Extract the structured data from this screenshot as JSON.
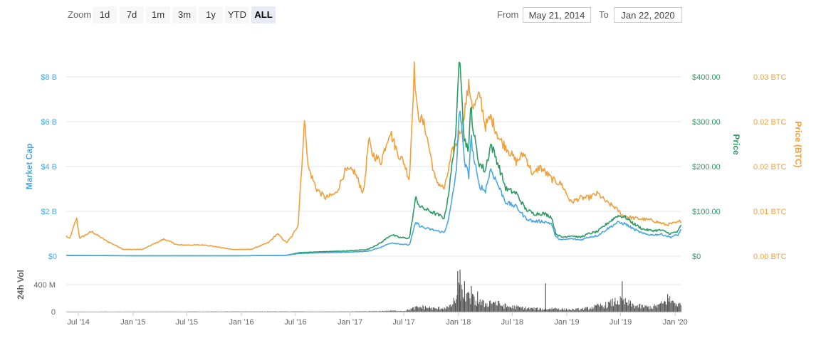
{
  "toolbar": {
    "zoom_label": "Zoom",
    "buttons": [
      "1d",
      "7d",
      "1m",
      "3m",
      "1y",
      "YTD",
      "ALL"
    ],
    "active": "ALL",
    "from_label": "From",
    "from_value": "May 21, 2014",
    "to_label": "To",
    "to_value": "Jan 22, 2020"
  },
  "colors": {
    "market_cap": "#4aa8e0",
    "price_usd": "#2e9a63",
    "price_btc": "#f0a03c",
    "volume": "#555555",
    "grid": "#e6e6e6",
    "axis_text": "#666666"
  },
  "chart_data": {
    "type": "line",
    "x_range": [
      "2014-05-21",
      "2020-01-22"
    ],
    "x_ticks": [
      "Jul '14",
      "Jan '15",
      "Jul '15",
      "Jan '16",
      "Jul '16",
      "Jan '17",
      "Jul '17",
      "Jan '18",
      "Jul '18",
      "Jan '19",
      "Jul '19",
      "Jan '20"
    ],
    "x_tick_dates": [
      "2014-07-01",
      "2015-01-01",
      "2015-07-01",
      "2016-01-01",
      "2016-07-01",
      "2017-01-01",
      "2017-07-01",
      "2018-01-01",
      "2018-07-01",
      "2019-01-01",
      "2019-07-01",
      "2020-01-01"
    ],
    "axes": {
      "market_cap": {
        "label": "Market Cap",
        "ticks": [
          "$0",
          "$2 B",
          "$4 B",
          "$6 B",
          "$8 B"
        ],
        "range": [
          0,
          8
        ]
      },
      "price_usd": {
        "label": "Price",
        "ticks": [
          "$0",
          "$100.00",
          "$200.00",
          "$300.00",
          "$400.00"
        ],
        "range": [
          0,
          400
        ]
      },
      "price_btc": {
        "label": "Price (BTC)",
        "ticks": [
          "0.00 BTC",
          "0.01 BTC",
          "0.02 BTC",
          "0.02 BTC",
          "0.03 BTC"
        ],
        "range": [
          0,
          0.04
        ]
      },
      "volume": {
        "label": "24h Vol",
        "ticks": [
          "0",
          "400 M"
        ],
        "range": [
          0,
          400
        ]
      }
    },
    "series": [
      {
        "name": "Price (BTC)",
        "color": "#f0a03c",
        "points": [
          [
            "2014-05-21",
            0.0045
          ],
          [
            "2014-06-01",
            0.0038
          ],
          [
            "2014-06-15",
            0.0065
          ],
          [
            "2014-06-25",
            0.0085
          ],
          [
            "2014-07-05",
            0.004
          ],
          [
            "2014-08-15",
            0.0055
          ],
          [
            "2014-10-01",
            0.0035
          ],
          [
            "2014-12-01",
            0.0015
          ],
          [
            "2015-02-01",
            0.0015
          ],
          [
            "2015-04-15",
            0.0038
          ],
          [
            "2015-06-01",
            0.0025
          ],
          [
            "2015-09-01",
            0.0025
          ],
          [
            "2015-12-01",
            0.0015
          ],
          [
            "2016-02-01",
            0.0015
          ],
          [
            "2016-04-01",
            0.003
          ],
          [
            "2016-05-01",
            0.005
          ],
          [
            "2016-06-01",
            0.003
          ],
          [
            "2016-06-20",
            0.0045
          ],
          [
            "2016-07-10",
            0.007
          ],
          [
            "2016-07-18",
            0.016
          ],
          [
            "2016-07-25",
            0.023
          ],
          [
            "2016-08-02",
            0.031
          ],
          [
            "2016-08-12",
            0.02
          ],
          [
            "2016-09-10",
            0.015
          ],
          [
            "2016-10-10",
            0.013
          ],
          [
            "2016-11-15",
            0.014
          ],
          [
            "2016-12-15",
            0.019
          ],
          [
            "2017-01-15",
            0.019
          ],
          [
            "2017-02-15",
            0.014
          ],
          [
            "2017-03-05",
            0.026
          ],
          [
            "2017-03-15",
            0.023
          ],
          [
            "2017-04-15",
            0.021
          ],
          [
            "2017-05-15",
            0.028
          ],
          [
            "2017-06-10",
            0.023
          ],
          [
            "2017-07-01",
            0.021
          ],
          [
            "2017-07-20",
            0.017
          ],
          [
            "2017-08-05",
            0.042
          ],
          [
            "2017-08-15",
            0.032
          ],
          [
            "2017-09-10",
            0.029
          ],
          [
            "2017-10-15",
            0.017
          ],
          [
            "2017-11-15",
            0.015
          ],
          [
            "2017-12-10",
            0.023
          ],
          [
            "2017-12-25",
            0.025
          ],
          [
            "2018-01-15",
            0.03
          ],
          [
            "2018-02-05",
            0.038
          ],
          [
            "2018-02-20",
            0.033
          ],
          [
            "2018-03-15",
            0.036
          ],
          [
            "2018-04-01",
            0.029
          ],
          [
            "2018-04-20",
            0.031
          ],
          [
            "2018-05-20",
            0.026
          ],
          [
            "2018-06-15",
            0.024
          ],
          [
            "2018-07-15",
            0.021
          ],
          [
            "2018-08-10",
            0.023
          ],
          [
            "2018-09-10",
            0.018
          ],
          [
            "2018-10-01",
            0.02
          ],
          [
            "2018-11-15",
            0.017
          ],
          [
            "2018-12-15",
            0.016
          ],
          [
            "2019-01-15",
            0.012
          ],
          [
            "2019-02-15",
            0.013
          ],
          [
            "2019-03-15",
            0.013
          ],
          [
            "2019-04-15",
            0.014
          ],
          [
            "2019-05-15",
            0.012
          ],
          [
            "2019-06-10",
            0.011
          ],
          [
            "2019-06-25",
            0.01
          ],
          [
            "2019-07-10",
            0.009
          ],
          [
            "2019-08-15",
            0.0085
          ],
          [
            "2019-10-15",
            0.008
          ],
          [
            "2019-12-01",
            0.007
          ],
          [
            "2020-01-10",
            0.0075
          ],
          [
            "2020-01-22",
            0.008
          ]
        ]
      },
      {
        "name": "Price",
        "color": "#2e9a63",
        "points": [
          [
            "2014-05-21",
            2
          ],
          [
            "2015-01-01",
            1
          ],
          [
            "2016-01-01",
            1
          ],
          [
            "2016-06-01",
            2
          ],
          [
            "2016-07-15",
            8
          ],
          [
            "2016-10-01",
            10
          ],
          [
            "2017-01-01",
            12
          ],
          [
            "2017-03-01",
            15
          ],
          [
            "2017-04-15",
            30
          ],
          [
            "2017-05-20",
            48
          ],
          [
            "2017-06-15",
            42
          ],
          [
            "2017-07-20",
            40
          ],
          [
            "2017-08-10",
            130
          ],
          [
            "2017-08-25",
            110
          ],
          [
            "2017-09-10",
            105
          ],
          [
            "2017-10-15",
            95
          ],
          [
            "2017-11-15",
            85
          ],
          [
            "2017-12-01",
            150
          ],
          [
            "2017-12-15",
            230
          ],
          [
            "2017-12-25",
            290
          ],
          [
            "2018-01-05",
            460
          ],
          [
            "2018-01-12",
            380
          ],
          [
            "2018-01-20",
            260
          ],
          [
            "2018-02-05",
            240
          ],
          [
            "2018-02-12",
            340
          ],
          [
            "2018-02-20",
            280
          ],
          [
            "2018-03-10",
            210
          ],
          [
            "2018-04-01",
            190
          ],
          [
            "2018-04-20",
            250
          ],
          [
            "2018-05-10",
            215
          ],
          [
            "2018-06-10",
            150
          ],
          [
            "2018-07-15",
            140
          ],
          [
            "2018-08-15",
            105
          ],
          [
            "2018-09-10",
            95
          ],
          [
            "2018-10-15",
            95
          ],
          [
            "2018-11-10",
            88
          ],
          [
            "2018-11-25",
            50
          ],
          [
            "2018-12-15",
            42
          ],
          [
            "2019-01-15",
            46
          ],
          [
            "2019-02-15",
            42
          ],
          [
            "2019-03-15",
            50
          ],
          [
            "2019-04-15",
            55
          ],
          [
            "2019-05-15",
            72
          ],
          [
            "2019-06-20",
            90
          ],
          [
            "2019-07-15",
            88
          ],
          [
            "2019-08-15",
            72
          ],
          [
            "2019-09-15",
            60
          ],
          [
            "2019-10-15",
            57
          ],
          [
            "2019-11-15",
            58
          ],
          [
            "2019-12-15",
            50
          ],
          [
            "2020-01-10",
            55
          ],
          [
            "2020-01-22",
            70
          ]
        ]
      },
      {
        "name": "Market Cap",
        "color": "#4aa8e0",
        "points": [
          [
            "2014-05-21",
            0.03
          ],
          [
            "2015-01-01",
            0.02
          ],
          [
            "2016-01-01",
            0.02
          ],
          [
            "2016-06-01",
            0.04
          ],
          [
            "2016-07-15",
            0.12
          ],
          [
            "2016-10-01",
            0.15
          ],
          [
            "2017-01-01",
            0.18
          ],
          [
            "2017-03-01",
            0.22
          ],
          [
            "2017-04-15",
            0.4
          ],
          [
            "2017-05-20",
            0.6
          ],
          [
            "2017-06-15",
            0.55
          ],
          [
            "2017-07-20",
            0.5
          ],
          [
            "2017-08-10",
            1.5
          ],
          [
            "2017-08-25",
            1.35
          ],
          [
            "2017-09-10",
            1.25
          ],
          [
            "2017-10-15",
            1.15
          ],
          [
            "2017-11-15",
            1.05
          ],
          [
            "2017-12-01",
            1.8
          ],
          [
            "2017-12-15",
            2.9
          ],
          [
            "2017-12-25",
            3.9
          ],
          [
            "2018-01-05",
            6.6
          ],
          [
            "2018-01-12",
            6.0
          ],
          [
            "2018-01-20",
            4.2
          ],
          [
            "2018-02-05",
            3.6
          ],
          [
            "2018-02-12",
            5.4
          ],
          [
            "2018-02-20",
            4.5
          ],
          [
            "2018-03-10",
            3.2
          ],
          [
            "2018-04-01",
            2.9
          ],
          [
            "2018-04-20",
            3.9
          ],
          [
            "2018-05-10",
            3.3
          ],
          [
            "2018-06-10",
            2.4
          ],
          [
            "2018-07-15",
            2.2
          ],
          [
            "2018-08-15",
            1.7
          ],
          [
            "2018-09-10",
            1.55
          ],
          [
            "2018-10-15",
            1.55
          ],
          [
            "2018-11-10",
            1.45
          ],
          [
            "2018-11-25",
            0.85
          ],
          [
            "2018-12-15",
            0.72
          ],
          [
            "2019-01-15",
            0.78
          ],
          [
            "2019-02-15",
            0.72
          ],
          [
            "2019-03-15",
            0.85
          ],
          [
            "2019-04-15",
            0.92
          ],
          [
            "2019-05-15",
            1.2
          ],
          [
            "2019-06-20",
            1.5
          ],
          [
            "2019-07-15",
            1.45
          ],
          [
            "2019-08-15",
            1.2
          ],
          [
            "2019-09-15",
            1.0
          ],
          [
            "2019-10-15",
            0.95
          ],
          [
            "2019-11-15",
            0.98
          ],
          [
            "2019-12-15",
            0.85
          ],
          [
            "2020-01-10",
            0.95
          ],
          [
            "2020-01-22",
            1.2
          ]
        ]
      }
    ],
    "volume_series": {
      "name": "24h Vol",
      "color": "#555555",
      "points": [
        [
          "2014-05-21",
          2
        ],
        [
          "2016-07-15",
          6
        ],
        [
          "2016-09-01",
          4
        ],
        [
          "2017-01-01",
          5
        ],
        [
          "2017-04-01",
          10
        ],
        [
          "2017-05-20",
          20
        ],
        [
          "2017-07-01",
          15
        ],
        [
          "2017-08-10",
          80
        ],
        [
          "2017-09-01",
          95
        ],
        [
          "2017-10-15",
          60
        ],
        [
          "2017-12-01",
          90
        ],
        [
          "2017-12-20",
          230
        ],
        [
          "2018-01-05",
          460
        ],
        [
          "2018-01-15",
          300
        ],
        [
          "2018-02-10",
          270
        ],
        [
          "2018-03-01",
          200
        ],
        [
          "2018-04-01",
          150
        ],
        [
          "2018-04-25",
          210
        ],
        [
          "2018-05-15",
          150
        ],
        [
          "2018-06-15",
          100
        ],
        [
          "2018-07-15",
          90
        ],
        [
          "2018-08-15",
          70
        ],
        [
          "2018-09-15",
          60
        ],
        [
          "2018-10-15",
          50
        ],
        [
          "2018-11-20",
          70
        ],
        [
          "2018-12-15",
          50
        ],
        [
          "2019-01-15",
          40
        ],
        [
          "2019-02-15",
          50
        ],
        [
          "2019-03-15",
          70
        ],
        [
          "2019-04-15",
          110
        ],
        [
          "2019-05-15",
          140
        ],
        [
          "2019-06-20",
          220
        ],
        [
          "2019-07-15",
          190
        ],
        [
          "2019-08-15",
          120
        ],
        [
          "2019-09-15",
          100
        ],
        [
          "2019-10-15",
          90
        ],
        [
          "2019-11-15",
          150
        ],
        [
          "2019-12-10",
          230
        ],
        [
          "2020-01-05",
          170
        ],
        [
          "2020-01-22",
          110
        ]
      ],
      "spikes": [
        [
          "2017-12-28",
          600
        ],
        [
          "2018-01-05",
          620
        ],
        [
          "2018-01-20",
          450
        ],
        [
          "2018-02-12",
          380
        ],
        [
          "2018-03-05",
          300
        ],
        [
          "2018-10-20",
          420
        ],
        [
          "2019-07-05",
          450
        ],
        [
          "2019-12-05",
          260
        ]
      ]
    }
  }
}
